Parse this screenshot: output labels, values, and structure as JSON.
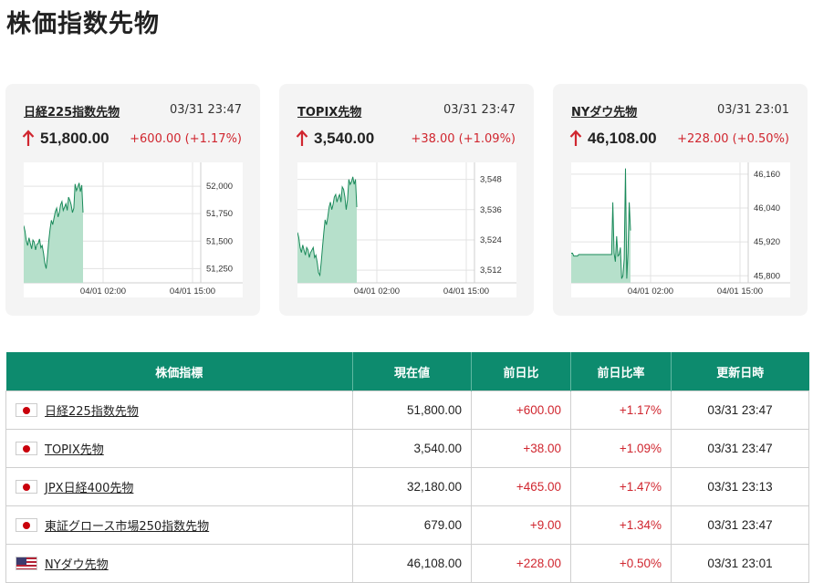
{
  "page": {
    "title": "株価指数先物"
  },
  "colors": {
    "accent": "#0d8b6e",
    "up": "#d0262f",
    "chart_line": "#1a8a5a",
    "chart_fill": "#b6e0cb"
  },
  "cards": [
    {
      "name": "日経225指数先物",
      "time": "03/31 23:47",
      "price": "51,800.00",
      "change": "+600.00 (+1.17%)",
      "chart_data": {
        "type": "area",
        "ylim": [
          51120,
          52200
        ],
        "yticks": [
          "52,000",
          "51,750",
          "51,500",
          "51,250"
        ],
        "ytick_values": [
          52000,
          51750,
          51500,
          51250
        ],
        "xticks": [
          "04/01 02:00",
          "04/01 15:00"
        ],
        "values": [
          51640,
          51590,
          51500,
          51460,
          51530,
          51480,
          51430,
          51510,
          51490,
          51420,
          51470,
          51480,
          51520,
          51440,
          51460,
          51390,
          51300,
          51250,
          51360,
          51500,
          51610,
          51690,
          51650,
          51710,
          51770,
          51800,
          51720,
          51760,
          51830,
          51860,
          51780,
          51810,
          51840,
          51780,
          51900,
          51870,
          51830,
          51760,
          51800,
          52020,
          51960,
          51990,
          52030,
          51950,
          52010,
          51760
        ]
      }
    },
    {
      "name": "TOPIX先物",
      "time": "03/31 23:47",
      "price": "3,540.00",
      "change": "+38.00 (+1.09%)",
      "chart_data": {
        "type": "area",
        "ylim": [
          3507,
          3554
        ],
        "yticks": [
          "3,548",
          "3,536",
          "3,524",
          "3,512"
        ],
        "ytick_values": [
          3548,
          3536,
          3524,
          3512
        ],
        "xticks": [
          "04/01 02:00",
          "04/01 15:00"
        ],
        "values": [
          3527,
          3525,
          3521,
          3519,
          3522,
          3520,
          3518,
          3521,
          3520,
          3517,
          3519,
          3520,
          3521,
          3517,
          3518,
          3515,
          3511,
          3510,
          3515,
          3521,
          3527,
          3532,
          3530,
          3533,
          3537,
          3539,
          3536,
          3538,
          3541,
          3542,
          3539,
          3541,
          3542,
          3539,
          3545,
          3544,
          3541,
          3536,
          3540,
          3548,
          3546,
          3547,
          3549,
          3546,
          3548,
          3537
        ]
      }
    },
    {
      "name": "NYダウ先物",
      "time": "03/31 23:01",
      "price": "46,108.00",
      "change": "+228.00 (+0.50%)",
      "chart_data": {
        "type": "area",
        "ylim": [
          45775,
          46195
        ],
        "yticks": [
          "46,160",
          "46,040",
          "45,920",
          "45,800"
        ],
        "ytick_values": [
          46160,
          46040,
          45920,
          45800
        ],
        "xticks": [
          "04/01 02:00",
          "04/01 15:00"
        ],
        "values": [
          45880,
          45880,
          45870,
          45870,
          45870,
          45870,
          45875,
          45875,
          45875,
          45875,
          45875,
          45875,
          45875,
          45875,
          45875,
          45875,
          45875,
          45875,
          45875,
          45875,
          45875,
          45875,
          45875,
          45875,
          45875,
          45875,
          45875,
          45875,
          45875,
          45875,
          45875,
          45875,
          45875,
          46060,
          45880,
          45850,
          45940,
          45870,
          45875,
          45900,
          45790,
          45800,
          45860,
          46180,
          45790,
          45880,
          46060,
          45960
        ]
      }
    }
  ],
  "table": {
    "headers": [
      "株価指標",
      "現在値",
      "前日比",
      "前日比率",
      "更新日時"
    ],
    "rows": [
      {
        "flag": "jp",
        "name": "日経225指数先物",
        "price": "51,800.00",
        "change": "+600.00",
        "pct": "+1.17%",
        "time": "03/31 23:47"
      },
      {
        "flag": "jp",
        "name": "TOPIX先物",
        "price": "3,540.00",
        "change": "+38.00",
        "pct": "+1.09%",
        "time": "03/31 23:47"
      },
      {
        "flag": "jp",
        "name": "JPX日経400先物",
        "price": "32,180.00",
        "change": "+465.00",
        "pct": "+1.47%",
        "time": "03/31 23:13"
      },
      {
        "flag": "jp",
        "name": "東証グロース市場250指数先物",
        "price": "679.00",
        "change": "+9.00",
        "pct": "+1.34%",
        "time": "03/31 23:47"
      },
      {
        "flag": "us",
        "name": "NYダウ先物",
        "price": "46,108.00",
        "change": "+228.00",
        "pct": "+0.50%",
        "time": "03/31 23:01"
      }
    ]
  }
}
